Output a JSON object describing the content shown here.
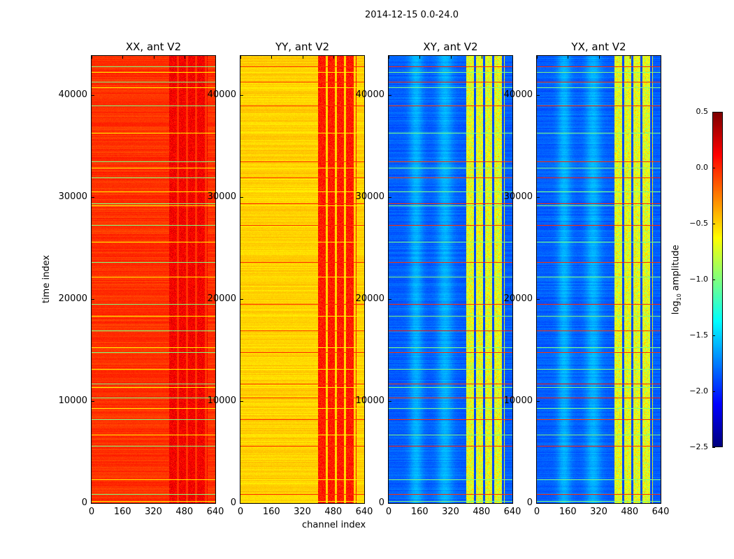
{
  "title": "2014-12-15 0.0-24.0",
  "chart_data": {
    "type": "heatmap",
    "title": "2014-12-15 0.0-24.0",
    "xlabel": "channel index",
    "ylabel": "time index",
    "xlim": [
      0,
      640
    ],
    "ylim": [
      0,
      43850
    ],
    "xticks": [
      "0",
      "160",
      "320",
      "480",
      "640"
    ],
    "yticks": [
      {
        "value": 0,
        "label": "0"
      },
      {
        "value": 10000,
        "label": "10000"
      },
      {
        "value": 20000,
        "label": "20000"
      },
      {
        "value": 30000,
        "label": "30000"
      },
      {
        "value": 40000,
        "label": "40000"
      }
    ],
    "colormap": "jet",
    "colorbar": {
      "label": "log",
      "label_sub": "10",
      "label_rest": " amplitude",
      "range": [
        -2.5,
        0.5
      ],
      "ticks": [
        {
          "value": 0.5,
          "label": "0.5"
        },
        {
          "value": 0.0,
          "label": "0.0"
        },
        {
          "value": -0.5,
          "label": "−0.5"
        },
        {
          "value": -1.0,
          "label": "−1.0"
        },
        {
          "value": -1.5,
          "label": "−1.5"
        },
        {
          "value": -2.0,
          "label": "−2.0"
        },
        {
          "value": -2.5,
          "label": "−2.5"
        }
      ]
    },
    "panels": [
      {
        "title": "XX, ant V2",
        "base_level": -0.02,
        "band_level": 0.15,
        "band_channels": [
          400,
          600
        ],
        "flag_level": -1.0
      },
      {
        "title": "YY, ant V2",
        "base_level": -0.5,
        "band_level": 0.05,
        "band_channels": [
          400,
          600
        ],
        "flag_level": 0.0
      },
      {
        "title": "XY, ant V2",
        "base_level": -1.85,
        "band_level": -0.7,
        "band_channels": [
          400,
          600
        ],
        "flag_level": 0.0
      },
      {
        "title": "YX, ant V2",
        "base_level": -1.85,
        "band_level": -0.7,
        "band_channels": [
          400,
          600
        ],
        "flag_level": 0.0
      }
    ],
    "flagged_time_rows": [
      42800,
      42300,
      41300,
      40800,
      38980,
      36290,
      33470,
      32900,
      31960,
      30550,
      29420,
      29200,
      27285,
      25640,
      23640,
      22200,
      19520,
      18350,
      16900,
      15260,
      14800,
      13130,
      11750,
      11400,
      10380,
      9350,
      8200,
      6735,
      5600,
      2340,
      900,
      200
    ]
  }
}
